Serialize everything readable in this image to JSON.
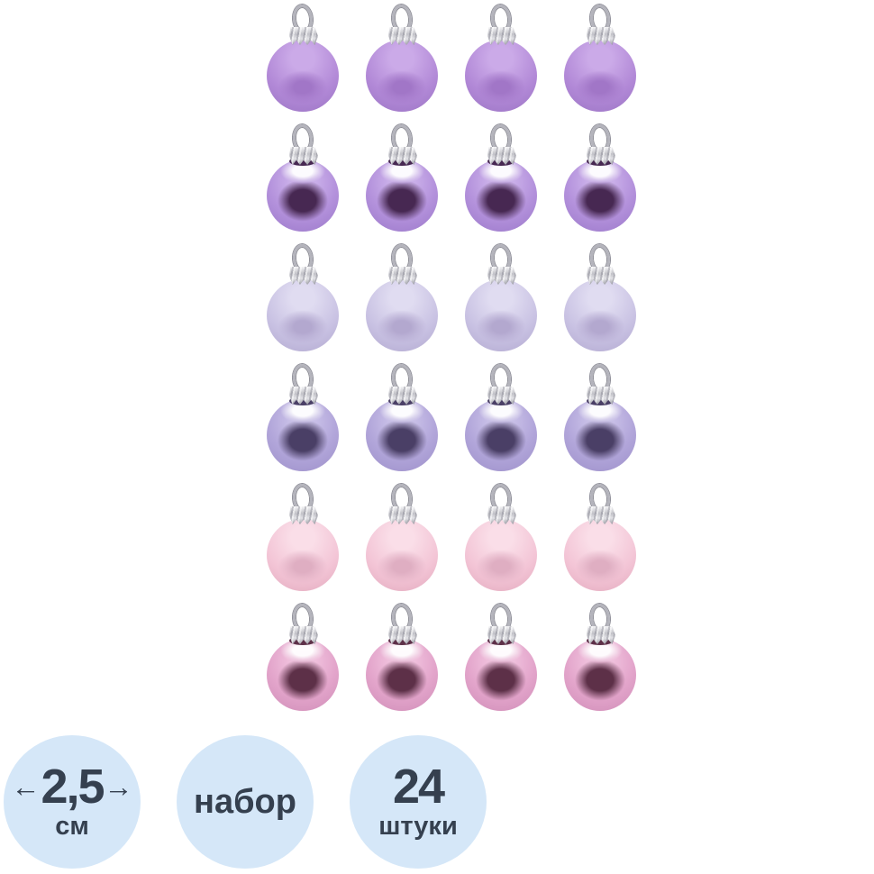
{
  "product": {
    "columns": 4,
    "rows": [
      {
        "finish": "matte",
        "color_name": "purple-matte",
        "base": "#b289d7",
        "light": "#cbaae8",
        "edge": "#9b74c4",
        "accent": "#a176c7"
      },
      {
        "finish": "glossy",
        "color_name": "purple-glossy",
        "base": "#b492dc",
        "light": "#cfb6ec",
        "edge": "#9a77c9",
        "accent": "#472852"
      },
      {
        "finish": "matte",
        "color_name": "lavender-matte",
        "base": "#c9c2e3",
        "light": "#e0dcf1",
        "edge": "#b2a9d0",
        "accent": "#b3a8cf"
      },
      {
        "finish": "glossy",
        "color_name": "lavender-glossy",
        "base": "#b2a6da",
        "light": "#cdc5ea",
        "edge": "#9c8fc9",
        "accent": "#4a3f66"
      },
      {
        "finish": "matte",
        "color_name": "pink-matte",
        "base": "#f3c5d6",
        "light": "#fadee8",
        "edge": "#e3aabe",
        "accent": "#dfaec2"
      },
      {
        "finish": "glossy",
        "color_name": "pink-glossy",
        "base": "#e3a5cb",
        "light": "#f2c6e0",
        "edge": "#cf8cb7",
        "accent": "#5d3048"
      }
    ]
  },
  "badges": {
    "bg_color": "#d5e7f8",
    "text_color": "#35404f",
    "size": {
      "arrow_left": "←",
      "value": "2,5",
      "arrow_right": "→",
      "unit": "см"
    },
    "set": {
      "label": "набор"
    },
    "count": {
      "value": "24",
      "unit": "штуки"
    }
  }
}
